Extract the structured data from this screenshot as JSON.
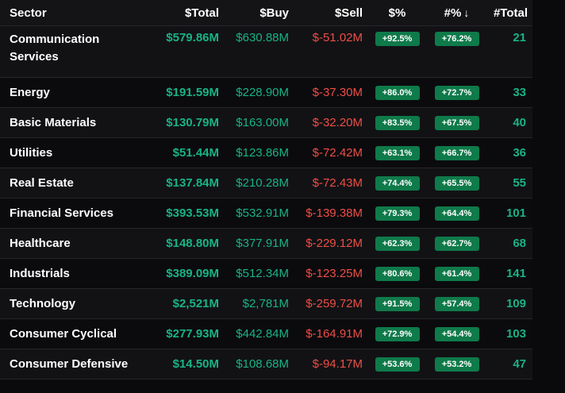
{
  "columns": {
    "sector": "Sector",
    "total": "$Total",
    "buy": "$Buy",
    "sell": "$Sell",
    "pct_dollar": "$%",
    "pct_count": "#%",
    "count": "#Total",
    "sort_indicator": "↓"
  },
  "colors": {
    "positive": "#19b384",
    "negative": "#ee4e45",
    "badge": "#0f7a4a"
  },
  "rows": [
    {
      "sector": "Communication Services",
      "total": "$579.86M",
      "buy": "$630.88M",
      "sell": "$-51.02M",
      "pct_dollar": "+92.5%",
      "pct_count": "+76.2%",
      "count": "21"
    },
    {
      "sector": "Energy",
      "total": "$191.59M",
      "buy": "$228.90M",
      "sell": "$-37.30M",
      "pct_dollar": "+86.0%",
      "pct_count": "+72.7%",
      "count": "33"
    },
    {
      "sector": "Basic Materials",
      "total": "$130.79M",
      "buy": "$163.00M",
      "sell": "$-32.20M",
      "pct_dollar": "+83.5%",
      "pct_count": "+67.5%",
      "count": "40"
    },
    {
      "sector": "Utilities",
      "total": "$51.44M",
      "buy": "$123.86M",
      "sell": "$-72.42M",
      "pct_dollar": "+63.1%",
      "pct_count": "+66.7%",
      "count": "36"
    },
    {
      "sector": "Real Estate",
      "total": "$137.84M",
      "buy": "$210.28M",
      "sell": "$-72.43M",
      "pct_dollar": "+74.4%",
      "pct_count": "+65.5%",
      "count": "55"
    },
    {
      "sector": "Financial Services",
      "total": "$393.53M",
      "buy": "$532.91M",
      "sell": "$-139.38M",
      "pct_dollar": "+79.3%",
      "pct_count": "+64.4%",
      "count": "101"
    },
    {
      "sector": "Healthcare",
      "total": "$148.80M",
      "buy": "$377.91M",
      "sell": "$-229.12M",
      "pct_dollar": "+62.3%",
      "pct_count": "+62.7%",
      "count": "68"
    },
    {
      "sector": "Industrials",
      "total": "$389.09M",
      "buy": "$512.34M",
      "sell": "$-123.25M",
      "pct_dollar": "+80.6%",
      "pct_count": "+61.4%",
      "count": "141"
    },
    {
      "sector": "Technology",
      "total": "$2,521M",
      "buy": "$2,781M",
      "sell": "$-259.72M",
      "pct_dollar": "+91.5%",
      "pct_count": "+57.4%",
      "count": "109"
    },
    {
      "sector": "Consumer Cyclical",
      "total": "$277.93M",
      "buy": "$442.84M",
      "sell": "$-164.91M",
      "pct_dollar": "+72.9%",
      "pct_count": "+54.4%",
      "count": "103"
    },
    {
      "sector": "Consumer Defensive",
      "total": "$14.50M",
      "buy": "$108.68M",
      "sell": "$-94.17M",
      "pct_dollar": "+53.6%",
      "pct_count": "+53.2%",
      "count": "47"
    }
  ]
}
